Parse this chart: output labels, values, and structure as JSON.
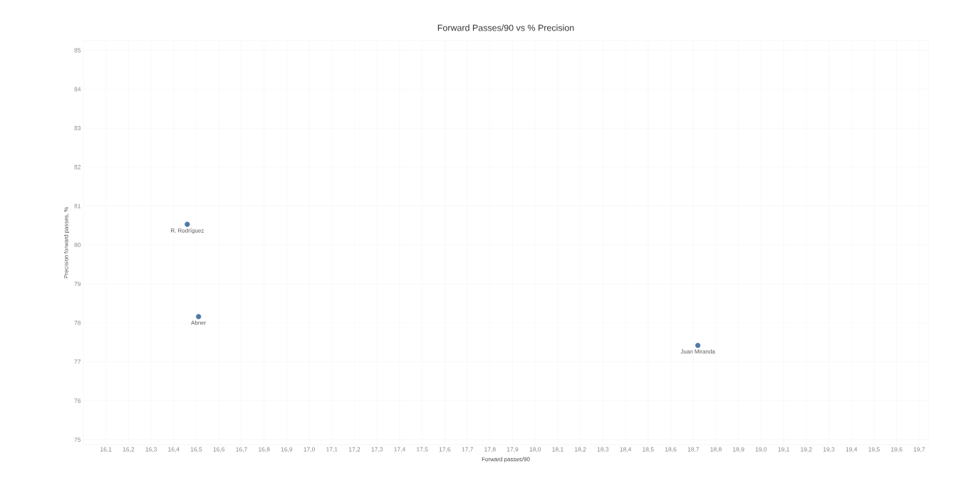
{
  "chart_data": {
    "type": "scatter",
    "title": "Forward Passes/90 vs % Precision",
    "xlabel": "Forward passes/90",
    "ylabel": "Precision forward passes, %",
    "x": [
      16.46,
      16.51,
      18.72
    ],
    "values": [
      80.53,
      78.16,
      77.42
    ],
    "color": "#4e79a7",
    "marker": "circle",
    "grid": true,
    "xlim": [
      16.0,
      19.74
    ],
    "ylim": [
      74.87,
      85.25
    ],
    "xticks": [
      {
        "value": 16.1,
        "label": "16,1"
      },
      {
        "value": 16.2,
        "label": "16,2"
      },
      {
        "value": 16.3,
        "label": "16,3"
      },
      {
        "value": 16.4,
        "label": "16,4"
      },
      {
        "value": 16.5,
        "label": "16,5"
      },
      {
        "value": 16.6,
        "label": "16,6"
      },
      {
        "value": 16.7,
        "label": "16,7"
      },
      {
        "value": 16.8,
        "label": "16,8"
      },
      {
        "value": 16.9,
        "label": "16,9"
      },
      {
        "value": 17.0,
        "label": "17,0"
      },
      {
        "value": 17.1,
        "label": "17,1"
      },
      {
        "value": 17.2,
        "label": "17,2"
      },
      {
        "value": 17.3,
        "label": "17,3"
      },
      {
        "value": 17.4,
        "label": "17,4"
      },
      {
        "value": 17.5,
        "label": "17,5"
      },
      {
        "value": 17.6,
        "label": "17,6"
      },
      {
        "value": 17.7,
        "label": "17,7"
      },
      {
        "value": 17.8,
        "label": "17,8"
      },
      {
        "value": 17.9,
        "label": "17,9"
      },
      {
        "value": 18.0,
        "label": "18,0"
      },
      {
        "value": 18.1,
        "label": "18,1"
      },
      {
        "value": 18.2,
        "label": "18,2"
      },
      {
        "value": 18.3,
        "label": "18,3"
      },
      {
        "value": 18.4,
        "label": "18,4"
      },
      {
        "value": 18.5,
        "label": "18,5"
      },
      {
        "value": 18.6,
        "label": "18,6"
      },
      {
        "value": 18.7,
        "label": "18,7"
      },
      {
        "value": 18.8,
        "label": "18,8"
      },
      {
        "value": 18.9,
        "label": "18,9"
      },
      {
        "value": 19.0,
        "label": "19,0"
      },
      {
        "value": 19.1,
        "label": "19,1"
      },
      {
        "value": 19.2,
        "label": "19,2"
      },
      {
        "value": 19.3,
        "label": "19,3"
      },
      {
        "value": 19.4,
        "label": "19,4"
      },
      {
        "value": 19.5,
        "label": "19,5"
      },
      {
        "value": 19.6,
        "label": "19,6"
      },
      {
        "value": 19.7,
        "label": "19,7"
      }
    ],
    "yticks": [
      75,
      76,
      77,
      78,
      79,
      80,
      81,
      82,
      83,
      84,
      85
    ],
    "annotations": [
      {
        "text": "R. Rodríguez",
        "x": 16.46,
        "y": 80.53
      },
      {
        "text": "Abner",
        "x": 16.51,
        "y": 78.16
      },
      {
        "text": "Juan Miranda",
        "x": 18.72,
        "y": 77.42
      }
    ]
  }
}
